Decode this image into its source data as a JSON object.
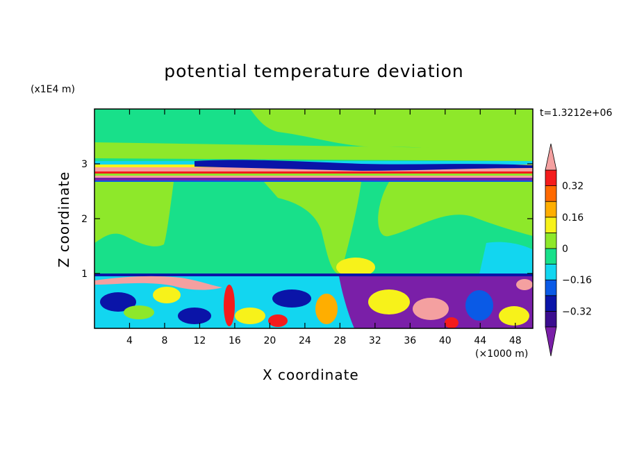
{
  "chart_data": {
    "type": "heatmap",
    "title": "potential temperature deviation",
    "xlabel": "X coordinate",
    "ylabel": "Z coordinate",
    "x_unit": "(×1000 m)",
    "y_unit": "(x1E4 m)",
    "time_label": "t=1.3212e+06",
    "xlim": [
      0,
      50
    ],
    "ylim": [
      0,
      4
    ],
    "x_ticks": [
      4,
      8,
      12,
      16,
      20,
      24,
      28,
      32,
      36,
      40,
      44,
      48
    ],
    "y_ticks": [
      1,
      2,
      3
    ],
    "colorbar": {
      "levels": [
        -0.4,
        -0.32,
        -0.24,
        -0.16,
        -0.08,
        0,
        0.08,
        0.16,
        0.24,
        0.32,
        0.4
      ],
      "labels": [
        "0.32",
        "0.16",
        "0",
        "−0.16",
        "−0.32"
      ],
      "label_values": [
        0.32,
        0.16,
        0,
        -0.16,
        -0.32
      ],
      "colors_low_to_high": [
        "#7a1fa8",
        "#3b0d8f",
        "#0a14a8",
        "#0a5ae6",
        "#12d6f0",
        "#18e08a",
        "#8ee82a",
        "#f7f21a",
        "#ffae00",
        "#ff6a00",
        "#f41c1c",
        "#f4a0a0"
      ],
      "extend": "both"
    },
    "colors": {
      "background_field": "#18e08a",
      "light_green": "#8ee82a",
      "cyan": "#12d6f0",
      "blue": "#0a5ae6",
      "navy": "#0a14a8",
      "purple": "#7a1fa8",
      "yellow": "#f7f21a",
      "orange": "#ffae00",
      "red": "#f41c1c",
      "pink": "#f4a0a0"
    }
  }
}
